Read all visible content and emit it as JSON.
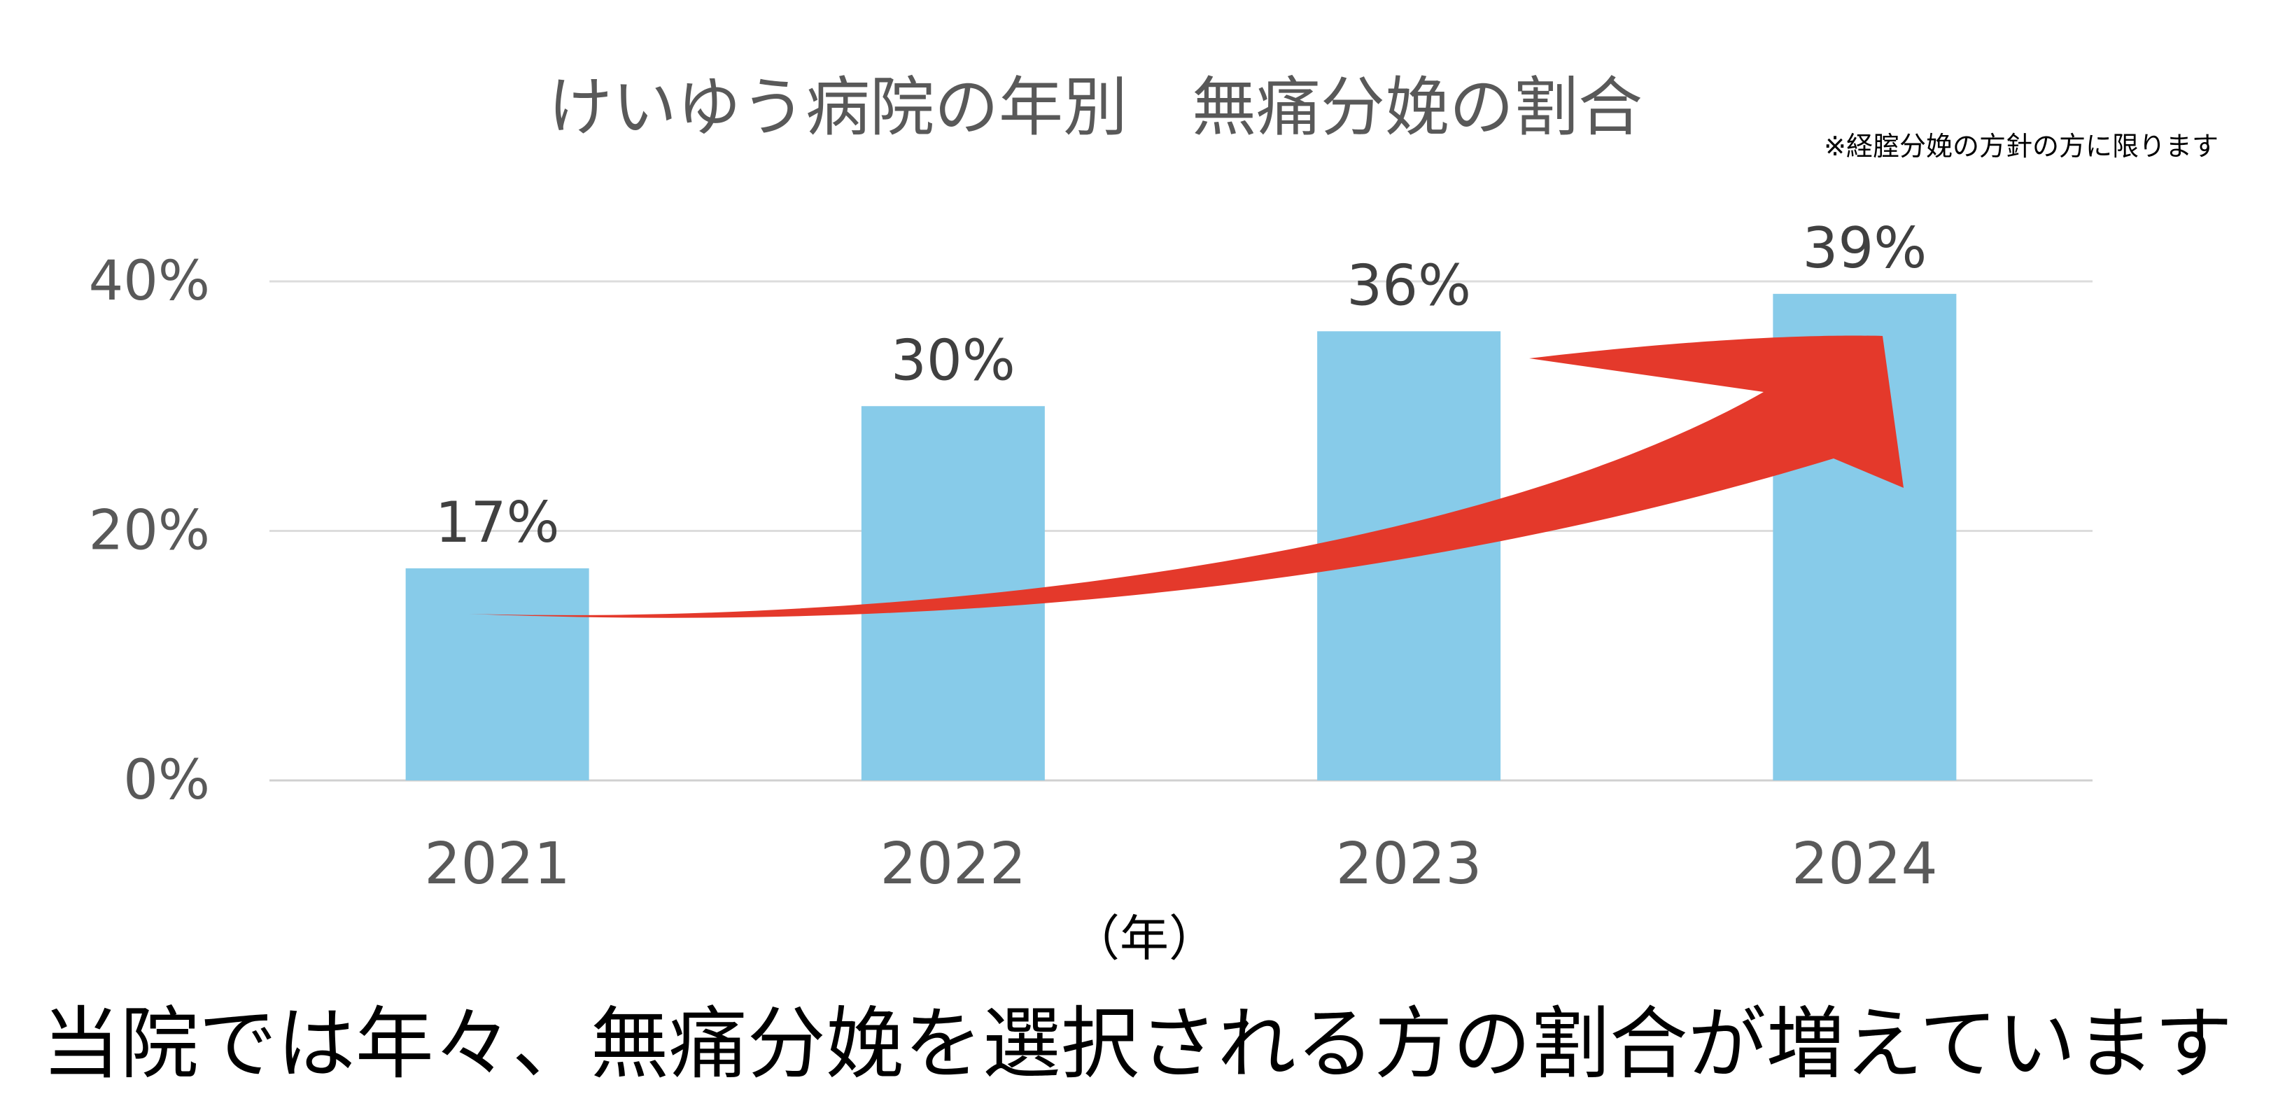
{
  "chart_data": {
    "type": "bar",
    "title": "けいゆう病院の年別　無痛分娩の割合",
    "note": "※経腟分娩の方針の方に限ります",
    "categories": [
      "2021",
      "2022",
      "2023",
      "2024"
    ],
    "values": [
      17,
      30,
      36,
      39
    ],
    "value_labels": [
      "17%",
      "30%",
      "36%",
      "39%"
    ],
    "ylim": [
      0,
      40
    ],
    "yticks": [
      "0%",
      "20%",
      "40%"
    ],
    "xlabel": "（年）",
    "caption": "当院では年々、無痛分娩を選択される方の割合が増えています",
    "grid": true,
    "bar_color": "#87CBE9",
    "arrow_color": "#E4392B",
    "text_color": "#595959"
  }
}
